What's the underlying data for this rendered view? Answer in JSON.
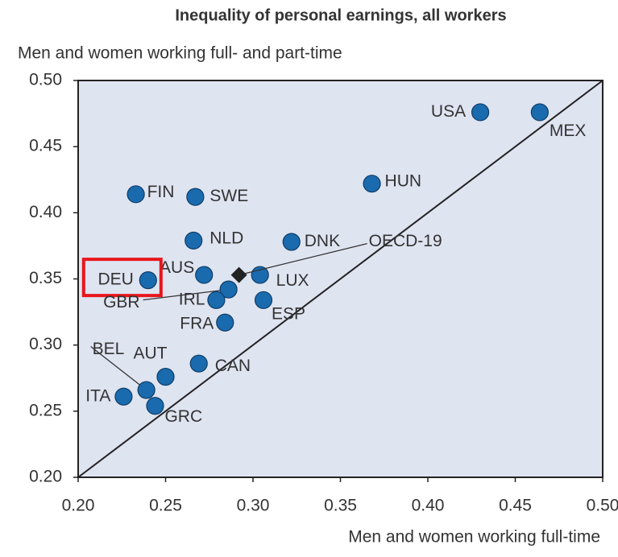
{
  "chart_data": {
    "type": "scatter",
    "title": "Inequality of personal earnings, all workers",
    "y_label": "Men and women working full- and part-time",
    "x_label": "Men and women working full-time",
    "xlim": [
      0.2,
      0.5
    ],
    "ylim": [
      0.2,
      0.5
    ],
    "xticks": [
      {
        "value": 0.2,
        "label": "0.20"
      },
      {
        "value": 0.25,
        "label": "0.25"
      },
      {
        "value": 0.3,
        "label": "0.30"
      },
      {
        "value": 0.35,
        "label": "0.35"
      },
      {
        "value": 0.4,
        "label": "0.40"
      },
      {
        "value": 0.45,
        "label": "0.45"
      },
      {
        "value": 0.5,
        "label": "0.50"
      }
    ],
    "yticks": [
      {
        "value": 0.2,
        "label": "0.20"
      },
      {
        "value": 0.25,
        "label": "0.25"
      },
      {
        "value": 0.3,
        "label": "0.30"
      },
      {
        "value": 0.35,
        "label": "0.35"
      },
      {
        "value": 0.4,
        "label": "0.40"
      },
      {
        "value": 0.45,
        "label": "0.45"
      },
      {
        "value": 0.5,
        "label": "0.50"
      }
    ],
    "series": [
      {
        "color": "#1a6aae",
        "marker": "circle",
        "labels": [
          "USA",
          "MEX",
          "HUN",
          "FIN",
          "SWE",
          "NLD",
          "DNK",
          "AUS",
          "DEU",
          "LUX",
          "GBR",
          "IRL",
          "ESP",
          "FRA",
          "CAN",
          "AUT",
          "BEL",
          "GRC",
          "ITA"
        ],
        "x": [
          0.43,
          0.464,
          0.368,
          0.233,
          0.267,
          0.266,
          0.322,
          0.272,
          0.24,
          0.304,
          0.286,
          0.279,
          0.306,
          0.284,
          0.269,
          0.25,
          0.239,
          0.244,
          0.226
        ],
        "values": [
          0.476,
          0.476,
          0.422,
          0.414,
          0.412,
          0.379,
          0.378,
          0.353,
          0.349,
          0.353,
          0.342,
          0.334,
          0.334,
          0.317,
          0.286,
          0.276,
          0.266,
          0.254,
          0.261
        ]
      },
      {
        "color": "#222222",
        "marker": "diamond",
        "labels": [
          "OECD-19"
        ],
        "x": [
          0.292
        ],
        "values": [
          0.353
        ]
      }
    ]
  }
}
